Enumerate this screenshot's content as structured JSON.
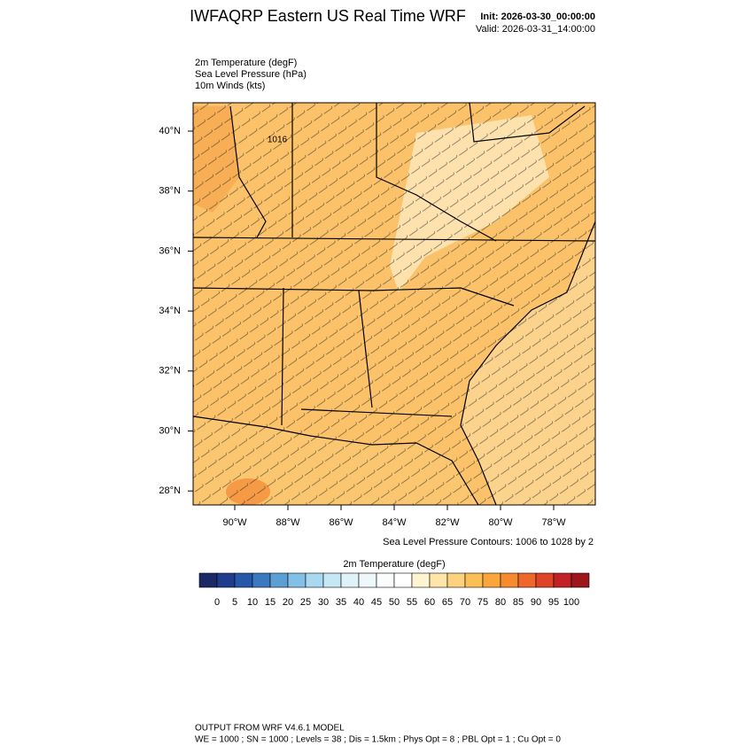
{
  "header": {
    "title": "IWFAQRP Eastern US Real Time WRF",
    "init": "Init: 2026-03-30_00:00:00",
    "valid": "Valid: 2026-03-31_14:00:00"
  },
  "fields": [
    "2m Temperature   (degF)",
    "Sea Level Pressure   (hPa)",
    "10m Winds   (kts)"
  ],
  "map": {
    "contour_label": "1016",
    "lat_labels": [
      "40°N",
      "38°N",
      "36°N",
      "34°N",
      "32°N",
      "30°N",
      "28°N"
    ],
    "lon_labels": [
      "90°W",
      "88°W",
      "86°W",
      "84°W",
      "82°W",
      "80°W",
      "78°W"
    ],
    "contour_note": "Sea Level Pressure Contours: 1006 to 1028 by 2"
  },
  "colorbar": {
    "title": "2m Temperature  (degF)",
    "colors": [
      "#1b2a66",
      "#1f3d8c",
      "#2757a8",
      "#3a78c0",
      "#5c9fd4",
      "#83bfe6",
      "#a9d9f1",
      "#c6e8f5",
      "#dff2f8",
      "#eef8fb",
      "#fafcfd",
      "#ffffff",
      "#fff4d2",
      "#ffe6a8",
      "#fdd27f",
      "#fcbe57",
      "#fba63c",
      "#f68a2e",
      "#ee672b",
      "#df4328",
      "#c22226",
      "#9c161c"
    ],
    "labels": [
      0,
      5,
      10,
      15,
      20,
      25,
      30,
      35,
      40,
      45,
      50,
      55,
      60,
      65,
      70,
      75,
      80,
      85,
      90,
      95,
      100
    ]
  },
  "footer": [
    "OUTPUT FROM WRF V4.6.1 MODEL",
    "WE = 1000 ; SN = 1000 ; Levels = 38 ; Dis = 1.5km ; Phys Opt = 8 ; PBL Opt = 1 ; Cu Opt = 0"
  ]
}
